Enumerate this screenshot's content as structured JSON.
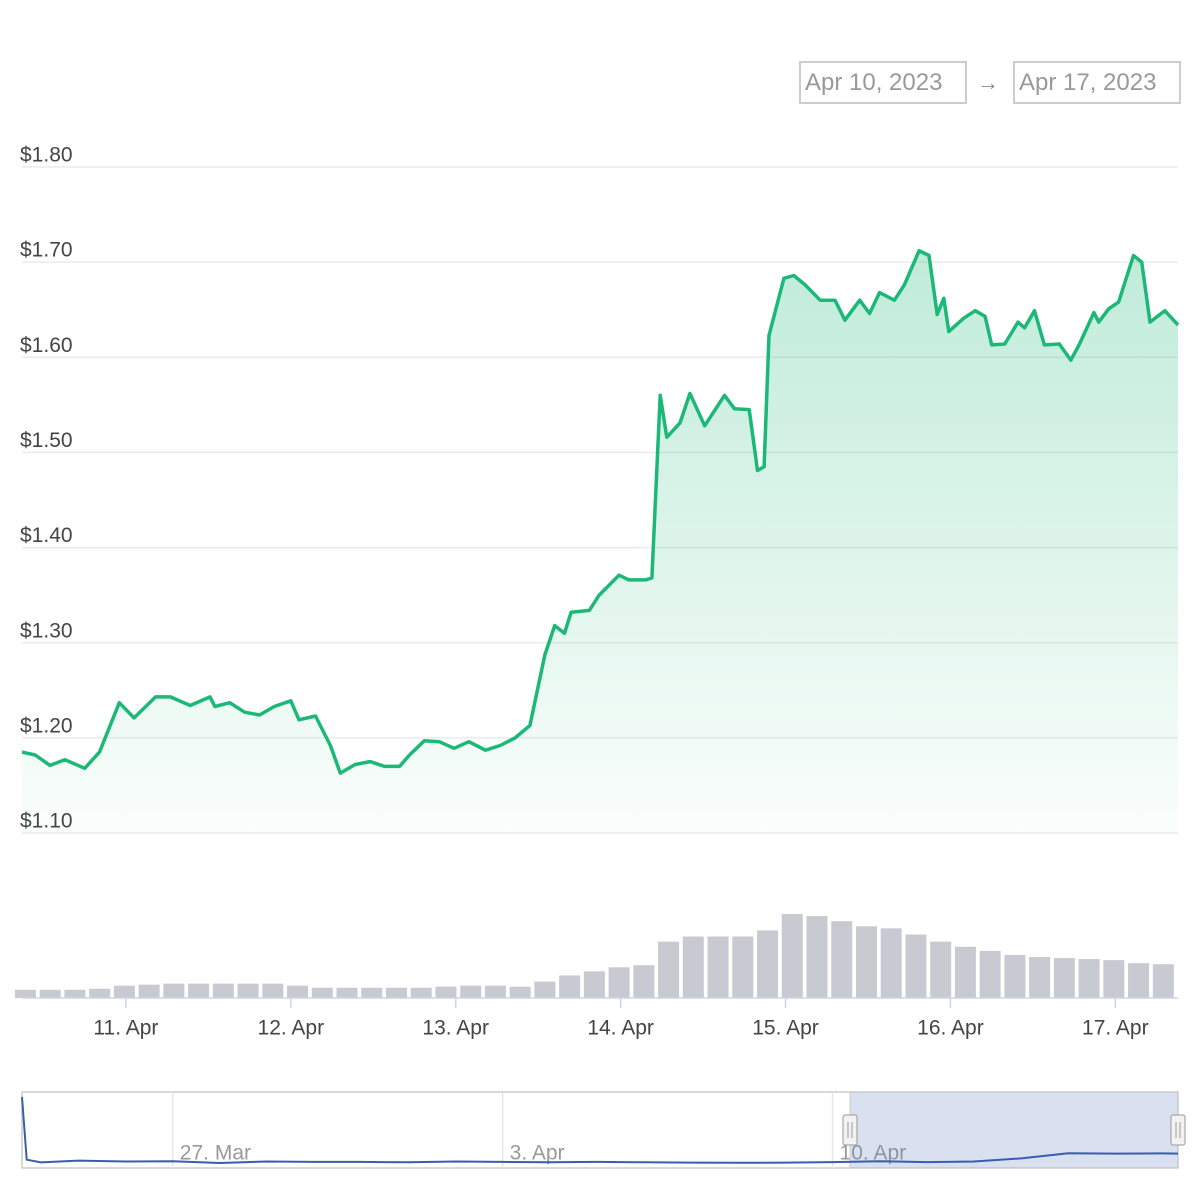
{
  "date_range": {
    "from": "Apr 10, 2023",
    "separator": "→",
    "to": "Apr 17, 2023"
  },
  "chart_data": [
    {
      "type": "area",
      "color": "#1cb877",
      "x": [
        10.37,
        10.45,
        10.54,
        10.63,
        10.75,
        10.84,
        10.96,
        11.05,
        11.18,
        11.27,
        11.39,
        11.51,
        11.54,
        11.63,
        11.72,
        11.81,
        11.9,
        12.0,
        12.05,
        12.15,
        12.24,
        12.3,
        12.39,
        12.48,
        12.57,
        12.66,
        12.72,
        12.81,
        12.9,
        12.99,
        13.08,
        13.18,
        13.27,
        13.36,
        13.45,
        13.54,
        13.6,
        13.66,
        13.7,
        13.81,
        13.87,
        13.99,
        14.05,
        14.15,
        14.19,
        14.24,
        14.28,
        14.36,
        14.42,
        14.51,
        14.63,
        14.69,
        14.78,
        14.83,
        14.87,
        14.9,
        14.99,
        15.05,
        15.12,
        15.21,
        15.3,
        15.36,
        15.45,
        15.51,
        15.57,
        15.66,
        15.72,
        15.81,
        15.87,
        15.92,
        15.96,
        15.99,
        16.08,
        16.15,
        16.21,
        16.25,
        16.33,
        16.41,
        16.45,
        16.51,
        16.57,
        16.66,
        16.73,
        16.78,
        16.87,
        16.9,
        16.96,
        17.02,
        17.11,
        17.16,
        17.21,
        17.3,
        17.38
      ],
      "values": [
        1.185,
        1.182,
        1.171,
        1.177,
        1.168,
        1.185,
        1.237,
        1.221,
        1.243,
        1.243,
        1.234,
        1.243,
        1.233,
        1.237,
        1.227,
        1.224,
        1.233,
        1.239,
        1.219,
        1.223,
        1.192,
        1.163,
        1.172,
        1.175,
        1.17,
        1.17,
        1.182,
        1.197,
        1.196,
        1.189,
        1.196,
        1.187,
        1.192,
        1.2,
        1.213,
        1.287,
        1.318,
        1.31,
        1.332,
        1.334,
        1.35,
        1.371,
        1.366,
        1.366,
        1.368,
        1.56,
        1.516,
        1.531,
        1.562,
        1.528,
        1.56,
        1.546,
        1.545,
        1.481,
        1.485,
        1.623,
        1.683,
        1.686,
        1.676,
        1.66,
        1.66,
        1.639,
        1.66,
        1.646,
        1.668,
        1.66,
        1.676,
        1.712,
        1.707,
        1.645,
        1.662,
        1.627,
        1.641,
        1.649,
        1.643,
        1.613,
        1.614,
        1.637,
        1.631,
        1.649,
        1.613,
        1.614,
        1.597,
        1.613,
        1.647,
        1.637,
        1.651,
        1.658,
        1.707,
        1.7,
        1.637,
        1.649,
        1.634
      ],
      "xlim": [
        10.37,
        17.38
      ],
      "ylim": [
        1.1,
        1.8
      ],
      "yticks": [
        {
          "value": 1.1,
          "label": "$1.10"
        },
        {
          "value": 1.2,
          "label": "$1.20"
        },
        {
          "value": 1.3,
          "label": "$1.30"
        },
        {
          "value": 1.4,
          "label": "$1.40"
        },
        {
          "value": 1.5,
          "label": "$1.50"
        },
        {
          "value": 1.6,
          "label": "$1.60"
        },
        {
          "value": 1.7,
          "label": "$1.70"
        },
        {
          "value": 1.8,
          "label": "$1.80"
        }
      ],
      "grid": true
    },
    {
      "type": "bar",
      "color": "#c9c9d1",
      "x": [
        10.4,
        10.55,
        10.7,
        10.85,
        11.0,
        11.15,
        11.3,
        11.45,
        11.6,
        11.75,
        11.9,
        12.05,
        12.2,
        12.35,
        12.5,
        12.65,
        12.8,
        12.95,
        13.1,
        13.25,
        13.4,
        13.55,
        13.7,
        13.85,
        14.0,
        14.15,
        14.3,
        14.45,
        14.6,
        14.75,
        14.9,
        15.05,
        15.2,
        15.35,
        15.5,
        15.65,
        15.8,
        15.95,
        16.1,
        16.25,
        16.4,
        16.55,
        16.7,
        16.85,
        17.0,
        17.15,
        17.3
      ],
      "values": [
        8,
        8,
        8,
        9,
        12,
        13,
        14,
        14,
        14,
        14,
        14,
        12,
        10,
        10,
        10,
        10,
        10,
        11,
        12,
        12,
        11,
        16,
        22,
        26,
        30,
        32,
        55,
        60,
        60,
        60,
        66,
        82,
        80,
        75,
        70,
        68,
        62,
        55,
        50,
        46,
        42,
        40,
        39,
        38,
        37,
        34,
        33
      ],
      "xlim": [
        10.37,
        17.38
      ],
      "xticks": [
        {
          "value": 11,
          "label": "11. Apr"
        },
        {
          "value": 12,
          "label": "12. Apr"
        },
        {
          "value": 13,
          "label": "13. Apr"
        },
        {
          "value": 14,
          "label": "14. Apr"
        },
        {
          "value": 15,
          "label": "15. Apr"
        },
        {
          "value": 16,
          "label": "16. Apr"
        },
        {
          "value": 17,
          "label": "17. Apr"
        }
      ]
    },
    {
      "type": "line",
      "color": "#3a5db0",
      "x": [
        -7.2,
        -7.1,
        -6.8,
        -6,
        -5,
        -4,
        -3,
        -2,
        -1,
        0,
        1,
        2,
        3,
        4,
        5,
        6,
        7,
        8,
        9,
        10,
        11,
        12,
        13,
        14,
        15,
        16,
        17,
        17.33
      ],
      "values": [
        4.7,
        1.3,
        1.15,
        1.25,
        1.2,
        1.22,
        1.12,
        1.2,
        1.18,
        1.18,
        1.16,
        1.2,
        1.18,
        1.16,
        1.18,
        1.16,
        1.14,
        1.13,
        1.14,
        1.17,
        1.22,
        1.17,
        1.2,
        1.37,
        1.65,
        1.63,
        1.64,
        1.63
      ],
      "xlim": [
        -7.2,
        17.33
      ],
      "xticks": [
        {
          "value": -4,
          "label": "27. Mar"
        },
        {
          "value": 3,
          "label": "3. Apr"
        },
        {
          "value": 10,
          "label": "10. Apr"
        }
      ]
    }
  ]
}
